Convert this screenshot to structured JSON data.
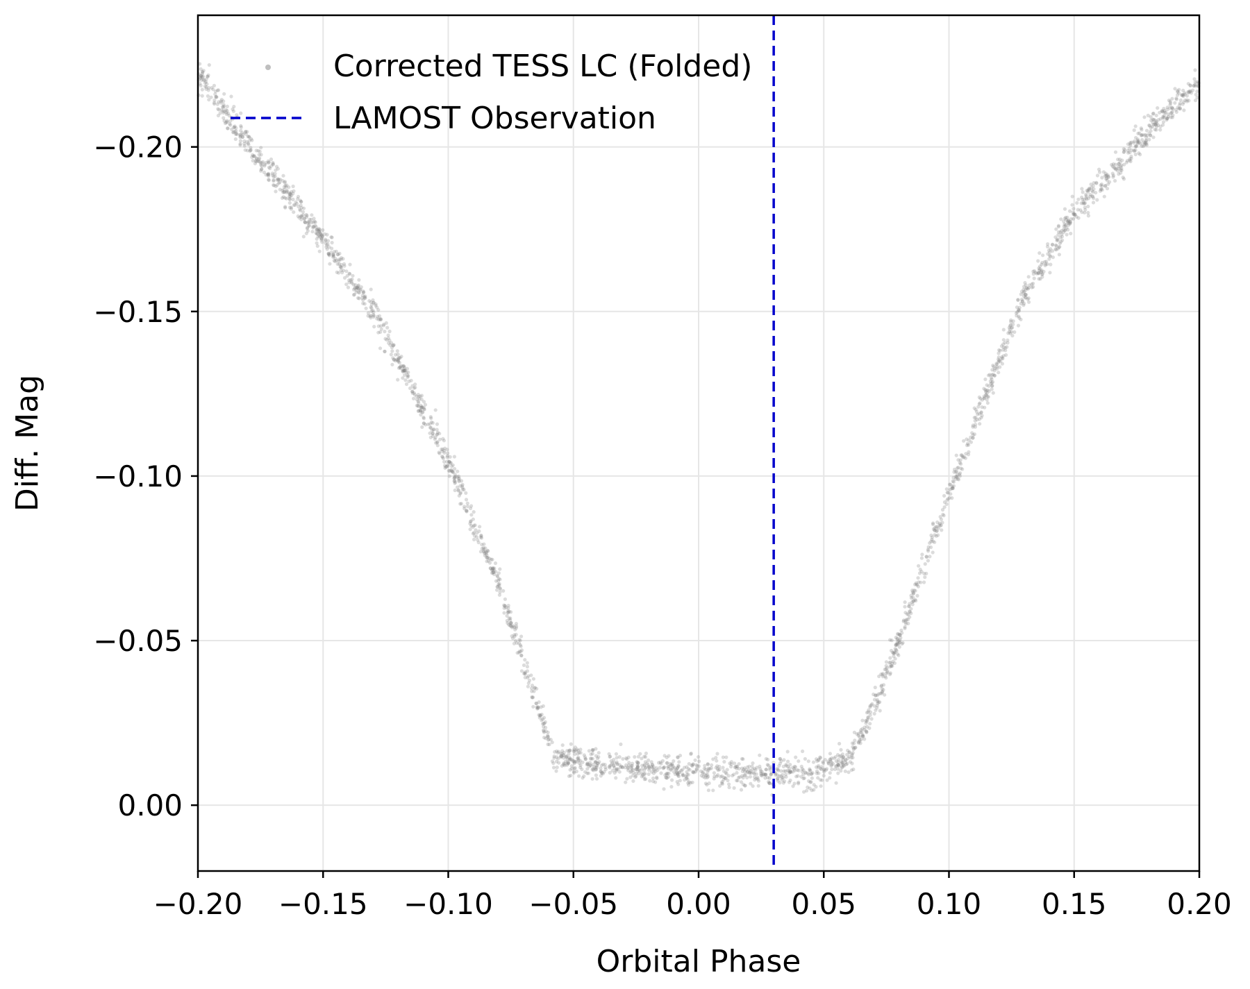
{
  "chart_data": {
    "type": "scatter",
    "xlabel": "Orbital Phase",
    "ylabel": "Diff. Mag",
    "xlim": [
      -0.2,
      0.2
    ],
    "ylim": [
      0.02,
      -0.24
    ],
    "y_inverted": true,
    "grid": true,
    "legend_placement": "top-left",
    "xticks": [
      -0.2,
      -0.15,
      -0.1,
      -0.05,
      0.0,
      0.05,
      0.1,
      0.15,
      0.2
    ],
    "xtick_labels": [
      "−0.20",
      "−0.15",
      "−0.10",
      "−0.05",
      "0.00",
      "0.05",
      "0.10",
      "0.15",
      "0.20"
    ],
    "yticks": [
      -0.2,
      -0.15,
      -0.1,
      -0.05,
      0.0
    ],
    "ytick_labels": [
      "−0.20",
      "−0.15",
      "−0.10",
      "−0.05",
      "0.00"
    ],
    "series": [
      {
        "name": "Corrected TESS LC (Folded)",
        "kind": "scatter",
        "color": "#808080",
        "profile_x": [
          -0.2,
          -0.18,
          -0.15,
          -0.13,
          -0.1,
          -0.08,
          -0.058,
          -0.045,
          -0.02,
          0.0,
          0.02,
          0.045,
          0.06,
          0.07,
          0.08,
          0.1,
          0.13,
          0.15,
          0.18,
          0.2
        ],
        "profile_y": [
          -0.222,
          -0.201,
          -0.172,
          -0.15,
          -0.105,
          -0.068,
          -0.015,
          -0.013,
          -0.011,
          -0.01,
          -0.01,
          -0.01,
          -0.013,
          -0.03,
          -0.05,
          -0.095,
          -0.155,
          -0.18,
          -0.205,
          -0.22
        ]
      },
      {
        "name": "LAMOST Observation",
        "kind": "vline",
        "color": "#0000cc",
        "x": 0.03
      }
    ]
  }
}
